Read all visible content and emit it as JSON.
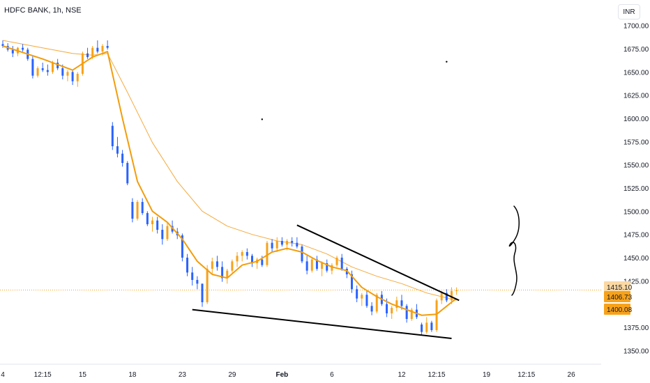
{
  "header": {
    "symbol_title": "HDFC BANK, 1h, NSE",
    "currency": "INR"
  },
  "colors": {
    "up": "#f7a21b",
    "down": "#2962ff",
    "ema_fast": "#f29d0b",
    "ema_slow": "#f5a93a",
    "trendline": "#000000",
    "axis_text": "#131722",
    "pricetag_bg": "#f7a21b",
    "pricetag_bg_light": "#fbd9a3"
  },
  "chart_data": {
    "type": "candlestick",
    "title": "",
    "ylim": [
      1337.5,
      1712.5
    ],
    "y_ticks": [
      "1700.00",
      "1675.00",
      "1650.00",
      "1625.00",
      "1600.00",
      "1575.00",
      "1550.00",
      "1525.00",
      "1500.00",
      "1475.00",
      "1450.00",
      "1425.00",
      "1375.00",
      "1350.00"
    ],
    "x_ticks": [
      {
        "label": "4",
        "x": 0
      },
      {
        "label": "12:15",
        "x": 8
      },
      {
        "label": "15",
        "x": 16
      },
      {
        "label": "18",
        "x": 26
      },
      {
        "label": "23",
        "x": 36
      },
      {
        "label": "29",
        "x": 46
      },
      {
        "label": "Feb",
        "x": 56,
        "bold": true
      },
      {
        "label": "6",
        "x": 66
      },
      {
        "label": "12",
        "x": 80
      },
      {
        "label": "12:15",
        "x": 87
      },
      {
        "label": "19",
        "x": 97
      },
      {
        "label": "12:15",
        "x": 105
      },
      {
        "label": "26",
        "x": 114
      }
    ],
    "x_range": [
      0,
      120
    ],
    "price_tags": [
      {
        "label": "1415.10",
        "value": 1415.1,
        "style": "light"
      },
      {
        "label": "1406.73",
        "value": 1406.73,
        "style": "accent"
      },
      {
        "label": "1400.08",
        "value": 1400.08,
        "style": "accent"
      }
    ],
    "last_price": 1415.1,
    "candles": [
      [
        0,
        1680,
        1684,
        1676,
        1678
      ],
      [
        1,
        1678,
        1681,
        1672,
        1674
      ],
      [
        2,
        1674,
        1678,
        1666,
        1670
      ],
      [
        3,
        1670,
        1677,
        1667,
        1676
      ],
      [
        4,
        1676,
        1680,
        1672,
        1674
      ],
      [
        5,
        1674,
        1676,
        1662,
        1664
      ],
      [
        6,
        1664,
        1668,
        1643,
        1646
      ],
      [
        7,
        1646,
        1656,
        1644,
        1654
      ],
      [
        8,
        1654,
        1660,
        1650,
        1652
      ],
      [
        9,
        1652,
        1658,
        1646,
        1650
      ],
      [
        10,
        1650,
        1662,
        1648,
        1660
      ],
      [
        11,
        1660,
        1664,
        1652,
        1654
      ],
      [
        12,
        1654,
        1658,
        1642,
        1646
      ],
      [
        13,
        1646,
        1652,
        1640,
        1650
      ],
      [
        14,
        1650,
        1652,
        1636,
        1640
      ],
      [
        15,
        1640,
        1650,
        1634,
        1648
      ],
      [
        16,
        1648,
        1672,
        1646,
        1670
      ],
      [
        17,
        1670,
        1676,
        1664,
        1666
      ],
      [
        18,
        1666,
        1678,
        1664,
        1676
      ],
      [
        19,
        1676,
        1684,
        1670,
        1672
      ],
      [
        20,
        1672,
        1680,
        1668,
        1678
      ],
      [
        21,
        1678,
        1684,
        1674,
        1676
      ],
      [
        22,
        1592,
        1596,
        1566,
        1570
      ],
      [
        23,
        1570,
        1580,
        1558,
        1562
      ],
      [
        24,
        1562,
        1566,
        1548,
        1552
      ],
      [
        25,
        1552,
        1554,
        1528,
        1530
      ],
      [
        26,
        1510,
        1514,
        1488,
        1492
      ],
      [
        27,
        1492,
        1512,
        1490,
        1510
      ],
      [
        28,
        1510,
        1514,
        1496,
        1498
      ],
      [
        29,
        1498,
        1500,
        1484,
        1486
      ],
      [
        30,
        1486,
        1494,
        1478,
        1490
      ],
      [
        31,
        1490,
        1494,
        1476,
        1480
      ],
      [
        32,
        1480,
        1486,
        1464,
        1470
      ],
      [
        33,
        1470,
        1488,
        1468,
        1484
      ],
      [
        34,
        1484,
        1490,
        1476,
        1478
      ],
      [
        35,
        1478,
        1482,
        1470,
        1474
      ],
      [
        36,
        1474,
        1476,
        1446,
        1450
      ],
      [
        37,
        1450,
        1454,
        1430,
        1434
      ],
      [
        38,
        1434,
        1440,
        1420,
        1426
      ],
      [
        39,
        1426,
        1430,
        1416,
        1422
      ],
      [
        40,
        1422,
        1422,
        1397,
        1402
      ],
      [
        41,
        1402,
        1442,
        1400,
        1438
      ],
      [
        42,
        1438,
        1450,
        1432,
        1446
      ],
      [
        43,
        1446,
        1452,
        1436,
        1440
      ],
      [
        44,
        1440,
        1446,
        1424,
        1428
      ],
      [
        45,
        1428,
        1438,
        1422,
        1436
      ],
      [
        46,
        1436,
        1448,
        1434,
        1446
      ],
      [
        47,
        1446,
        1456,
        1440,
        1452
      ],
      [
        48,
        1452,
        1458,
        1446,
        1456
      ],
      [
        49,
        1456,
        1460,
        1448,
        1452
      ],
      [
        50,
        1452,
        1454,
        1440,
        1444
      ],
      [
        51,
        1444,
        1450,
        1438,
        1448
      ],
      [
        52,
        1448,
        1452,
        1440,
        1442
      ],
      [
        53,
        1442,
        1468,
        1440,
        1466
      ],
      [
        54,
        1466,
        1470,
        1456,
        1460
      ],
      [
        55,
        1460,
        1472,
        1456,
        1468
      ],
      [
        56,
        1468,
        1472,
        1462,
        1464
      ],
      [
        57,
        1464,
        1470,
        1458,
        1468
      ],
      [
        58,
        1468,
        1472,
        1462,
        1466
      ],
      [
        59,
        1466,
        1472,
        1460,
        1462
      ],
      [
        60,
        1462,
        1464,
        1444,
        1446
      ],
      [
        61,
        1446,
        1452,
        1432,
        1436
      ],
      [
        62,
        1436,
        1450,
        1434,
        1448
      ],
      [
        63,
        1448,
        1452,
        1436,
        1438
      ],
      [
        64,
        1438,
        1446,
        1430,
        1444
      ],
      [
        65,
        1444,
        1448,
        1434,
        1436
      ],
      [
        66,
        1436,
        1444,
        1432,
        1442
      ],
      [
        67,
        1442,
        1452,
        1440,
        1450
      ],
      [
        68,
        1450,
        1454,
        1436,
        1438
      ],
      [
        69,
        1438,
        1440,
        1428,
        1432
      ],
      [
        70,
        1432,
        1436,
        1412,
        1416
      ],
      [
        71,
        1416,
        1420,
        1402,
        1406
      ],
      [
        72,
        1406,
        1412,
        1398,
        1410
      ],
      [
        73,
        1410,
        1414,
        1396,
        1398
      ],
      [
        74,
        1398,
        1402,
        1388,
        1392
      ],
      [
        75,
        1392,
        1412,
        1390,
        1410
      ],
      [
        76,
        1410,
        1414,
        1398,
        1400
      ],
      [
        77,
        1400,
        1406,
        1386,
        1390
      ],
      [
        78,
        1390,
        1398,
        1384,
        1396
      ],
      [
        79,
        1396,
        1408,
        1392,
        1404
      ],
      [
        80,
        1404,
        1410,
        1394,
        1398
      ],
      [
        81,
        1398,
        1400,
        1380,
        1384
      ],
      [
        82,
        1384,
        1396,
        1382,
        1394
      ],
      [
        83,
        1394,
        1400,
        1384,
        1386
      ],
      [
        84,
        1378,
        1380,
        1366,
        1370
      ],
      [
        85,
        1370,
        1386,
        1368,
        1380
      ],
      [
        86,
        1380,
        1382,
        1370,
        1372
      ],
      [
        87,
        1372,
        1406,
        1370,
        1404
      ],
      [
        88,
        1404,
        1414,
        1400,
        1412
      ],
      [
        89,
        1412,
        1416,
        1402,
        1404
      ],
      [
        90,
        1404,
        1418,
        1400,
        1414
      ],
      [
        91,
        1414,
        1418,
        1410,
        1415
      ]
    ],
    "ema_fast": [
      [
        0,
        1678
      ],
      [
        8,
        1664
      ],
      [
        14,
        1652
      ],
      [
        18,
        1666
      ],
      [
        21,
        1672
      ],
      [
        24,
        1600
      ],
      [
        27,
        1532
      ],
      [
        30,
        1500
      ],
      [
        33,
        1488
      ],
      [
        36,
        1470
      ],
      [
        39,
        1446
      ],
      [
        42,
        1432
      ],
      [
        45,
        1428
      ],
      [
        48,
        1442
      ],
      [
        51,
        1446
      ],
      [
        54,
        1456
      ],
      [
        57,
        1460
      ],
      [
        60,
        1456
      ],
      [
        63,
        1447
      ],
      [
        66,
        1440
      ],
      [
        69,
        1436
      ],
      [
        72,
        1418
      ],
      [
        75,
        1408
      ],
      [
        78,
        1400
      ],
      [
        81,
        1394
      ],
      [
        84,
        1388
      ],
      [
        87,
        1389
      ],
      [
        90,
        1402
      ],
      [
        91,
        1406
      ]
    ],
    "ema_slow": [
      [
        0,
        1684
      ],
      [
        8,
        1676
      ],
      [
        14,
        1670
      ],
      [
        18,
        1668
      ],
      [
        21,
        1670
      ],
      [
        25,
        1628
      ],
      [
        30,
        1574
      ],
      [
        35,
        1532
      ],
      [
        40,
        1500
      ],
      [
        45,
        1484
      ],
      [
        50,
        1475
      ],
      [
        55,
        1468
      ],
      [
        60,
        1464
      ],
      [
        65,
        1454
      ],
      [
        70,
        1440
      ],
      [
        75,
        1430
      ],
      [
        80,
        1422
      ],
      [
        85,
        1412
      ],
      [
        88,
        1408
      ],
      [
        91,
        1404
      ]
    ],
    "trendlines": [
      {
        "name": "lower-support",
        "x1": 38,
        "y1": 1394,
        "x2": 90,
        "y2": 1363
      },
      {
        "name": "upper-resistance",
        "x1": 59,
        "y1": 1485,
        "x2": 91.5,
        "y2": 1404
      }
    ],
    "markers": [
      {
        "x": 52,
        "y": 1599
      },
      {
        "x": 89,
        "y": 1661
      }
    ]
  }
}
